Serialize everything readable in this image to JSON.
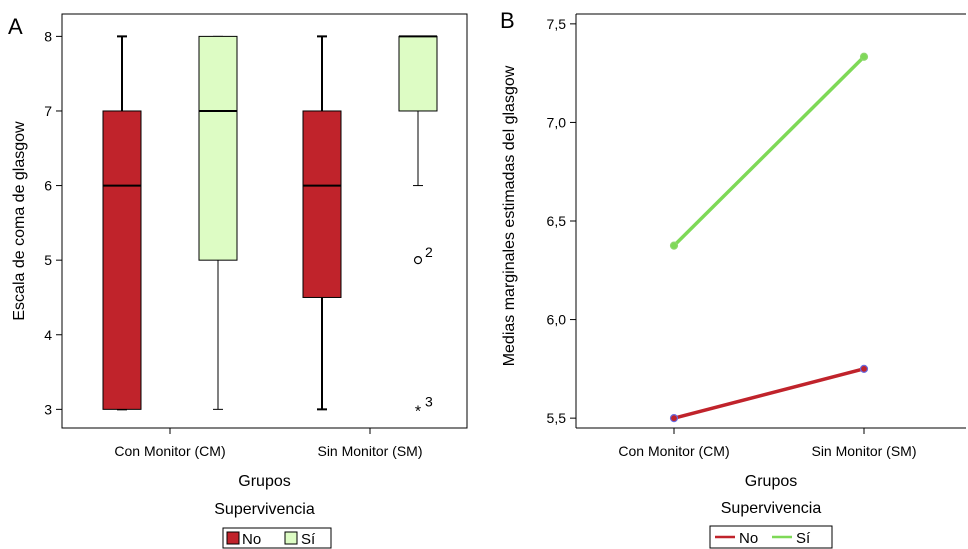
{
  "chart_data": [
    {
      "type": "box",
      "panel_label": "A",
      "xlabel": "Grupos",
      "ylabel": "Escala de coma de glasgow",
      "ylim": [
        2.75,
        8.3
      ],
      "yticks": [
        "3",
        "4",
        "5",
        "6",
        "7",
        "8"
      ],
      "ytick_values": [
        3,
        4,
        5,
        6,
        7,
        8
      ],
      "categories": [
        "Con Monitor (CM)",
        "Sin Monitor (SM)"
      ],
      "legend": {
        "title": "Supervivencia",
        "position": "bottom"
      },
      "series": [
        {
          "name": "No",
          "color": "#c0232b",
          "boxes": [
            {
              "whisker_low": 3,
              "q1": 3,
              "median": 6,
              "q3": 7,
              "whisker_high": 8,
              "outliers": []
            },
            {
              "whisker_low": 3,
              "q1": 4.5,
              "median": 6,
              "q3": 7,
              "whisker_high": 8,
              "outliers": []
            }
          ]
        },
        {
          "name": "Sí",
          "color": "#ddfcc4",
          "boxes": [
            {
              "whisker_low": 3,
              "q1": 5,
              "median": 7,
              "q3": 8,
              "whisker_high": 8,
              "outliers": []
            },
            {
              "whisker_low": 6,
              "q1": 7,
              "median": 8,
              "q3": 8,
              "whisker_high": 8,
              "outliers": [
                {
                  "value": 5,
                  "label": "2",
                  "marker": "circle"
                },
                {
                  "value": 3,
                  "label": "3",
                  "marker": "star"
                }
              ]
            }
          ]
        }
      ]
    },
    {
      "type": "line",
      "panel_label": "B",
      "xlabel": "Grupos",
      "ylabel": "Medias marginales estimadas del glasgow",
      "ylim": [
        5.45,
        7.55
      ],
      "yticks": [
        "5,5",
        "6,0",
        "6,5",
        "7,0",
        "7,5"
      ],
      "ytick_values": [
        5.5,
        6.0,
        6.5,
        7.0,
        7.5
      ],
      "categories": [
        "Con Monitor (CM)",
        "Sin Monitor (SM)"
      ],
      "legend": {
        "title": "Supervivencia",
        "position": "bottom"
      },
      "series": [
        {
          "name": "No",
          "color": "#c0232b",
          "values": [
            5.5,
            5.75
          ]
        },
        {
          "name": "Sí",
          "color": "#7ed957",
          "values": [
            6.375,
            7.333
          ]
        }
      ]
    }
  ]
}
